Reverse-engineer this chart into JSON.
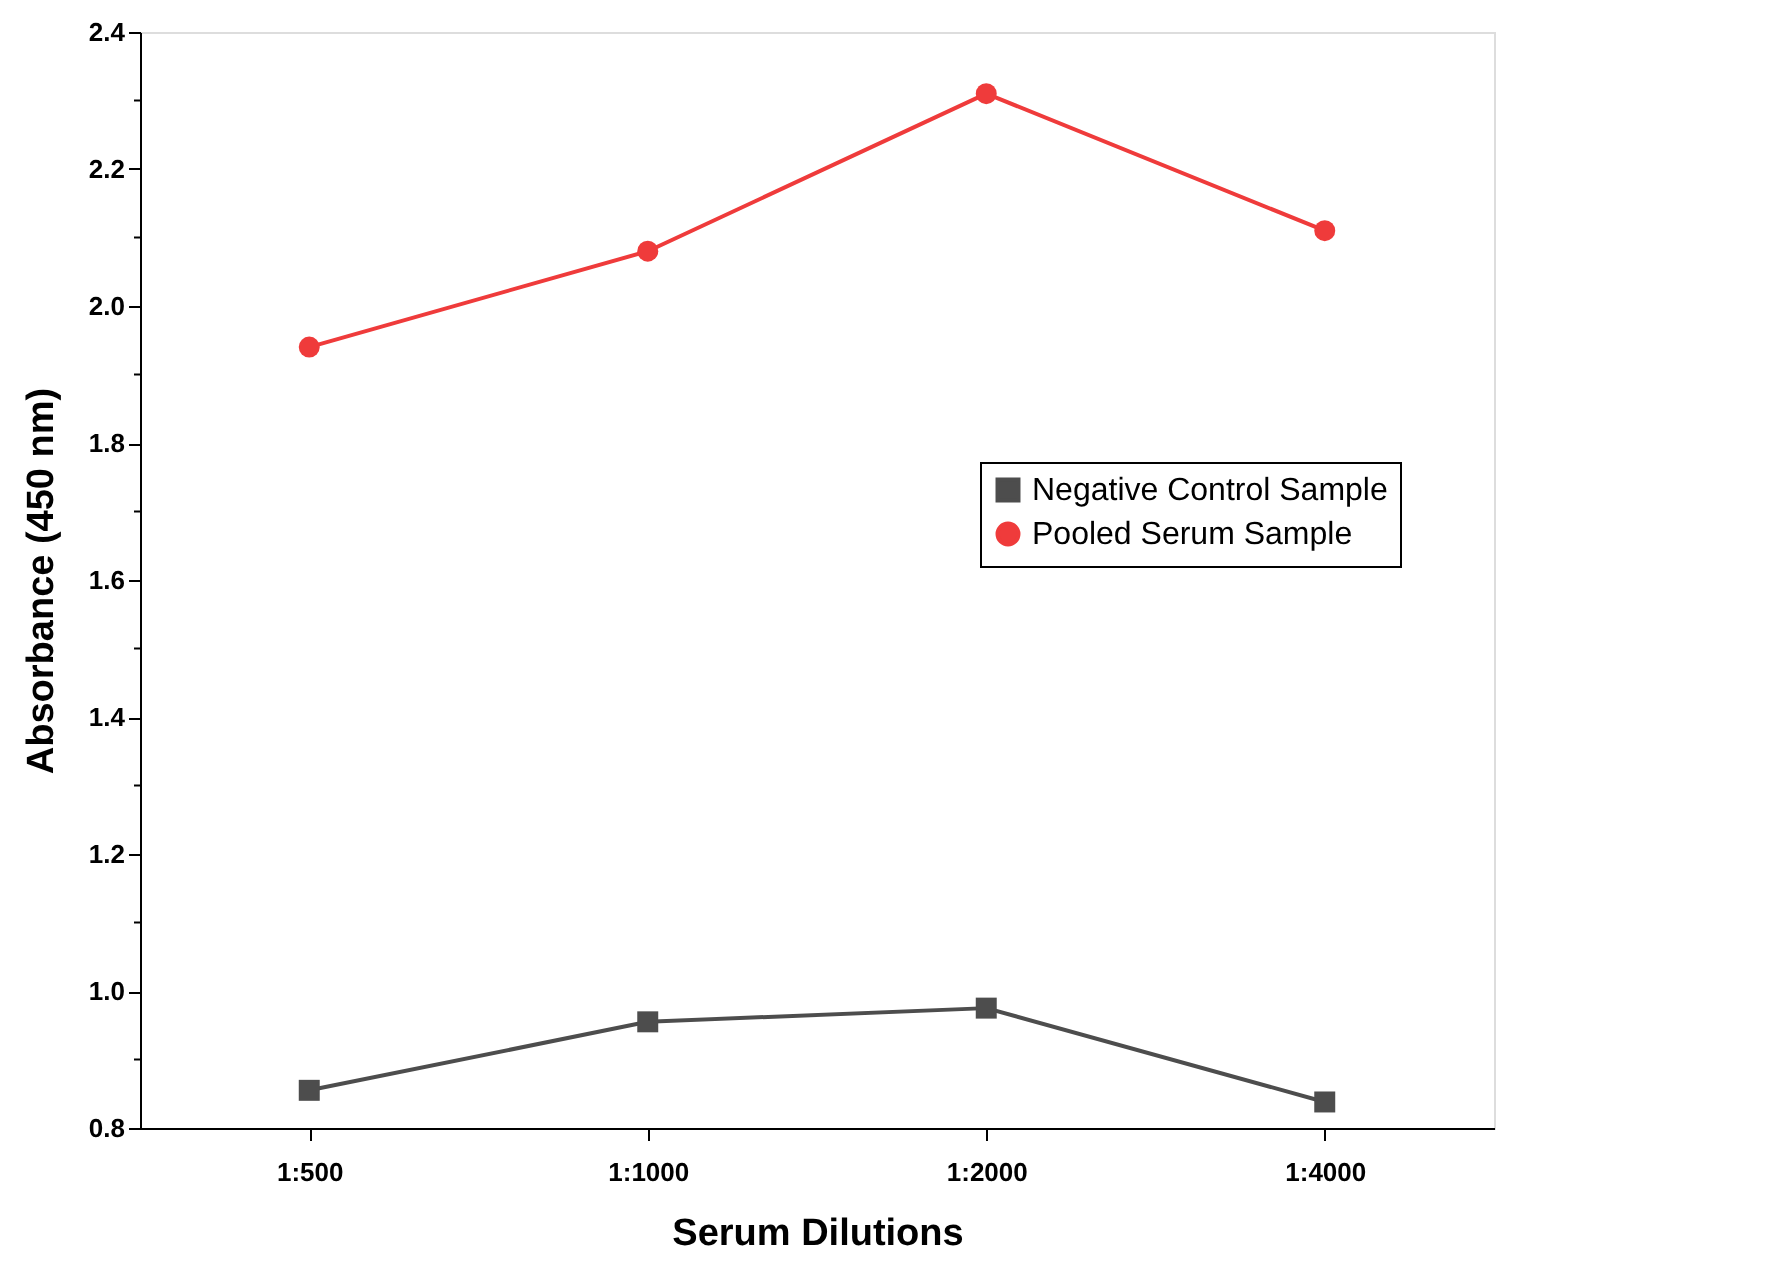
{
  "chart_data": {
    "type": "line",
    "xlabel": "Serum Dilutions",
    "ylabel": "Absorbance (450 nm)",
    "categories": [
      "1:500",
      "1:1000",
      "1:2000",
      "1:4000"
    ],
    "series": [
      {
        "name": "Negative Control Sample",
        "color": "#4d4d4d",
        "marker": "square",
        "values": [
          0.855,
          0.955,
          0.975,
          0.838
        ]
      },
      {
        "name": "Pooled Serum Sample",
        "color": "#ef3b3b",
        "marker": "circle",
        "values": [
          1.94,
          2.08,
          2.31,
          2.11
        ]
      }
    ],
    "ylim": [
      0.8,
      2.4
    ],
    "yticks": [
      0.8,
      {
        "value": 0.9,
        "label": null
      },
      {
        "value": 1,
        "label": "1.0"
      },
      {
        "value": 1.1,
        "label": null
      },
      1.2,
      {
        "value": 1.3,
        "label": null
      },
      1.4,
      {
        "value": 1.5,
        "label": null
      },
      1.6,
      {
        "value": 1.7,
        "label": null
      },
      1.8,
      {
        "value": 1.9,
        "label": null
      },
      {
        "value": 2,
        "label": "2.0"
      },
      {
        "value": 2.1,
        "label": null
      },
      2.2,
      {
        "value": 2.3,
        "label": null
      },
      2.4
    ],
    "grid": false,
    "legend": "right",
    "line_style": "solid"
  }
}
